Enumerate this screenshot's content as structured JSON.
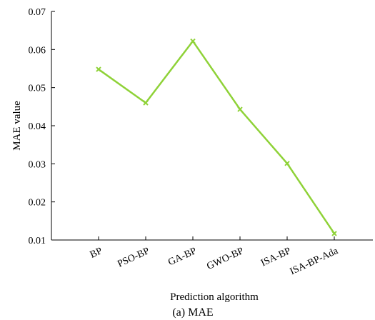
{
  "chart_data": {
    "type": "line",
    "categories": [
      "BP",
      "PSO-BP",
      "GA-BP",
      "GWO-BP",
      "ISA-BP",
      "ISA-BP-Ada"
    ],
    "values": [
      0.0548,
      0.046,
      0.0622,
      0.0443,
      0.0301,
      0.0117
    ],
    "xlabel": "Prediction algorithm",
    "ylabel": "MAE value",
    "ylim": [
      0.01,
      0.07
    ],
    "yticks": [
      "0.01",
      "0.02",
      "0.03",
      "0.04",
      "0.05",
      "0.06",
      "0.07"
    ],
    "caption": "(a) MAE",
    "grid": false,
    "marker": "x",
    "line_color": "#8fd238"
  }
}
